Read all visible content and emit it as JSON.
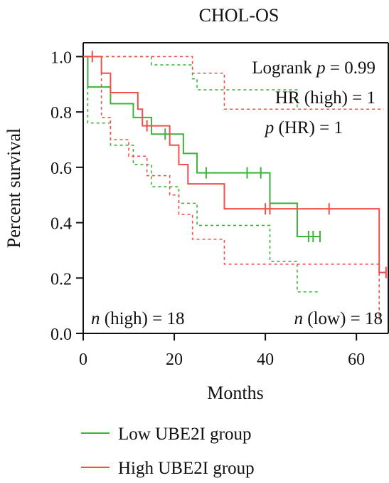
{
  "chart_data": {
    "type": "line",
    "title": "CHOL-OS",
    "xlabel": "Months",
    "ylabel": "Percent survival",
    "xlim": [
      0,
      67
    ],
    "ylim": [
      0,
      1.05
    ],
    "x_ticks": [
      "0",
      "20",
      "40",
      "60"
    ],
    "y_ticks": [
      "0.0",
      "0.2",
      "0.4",
      "0.6",
      "0.8",
      "1.0"
    ],
    "annotations": {
      "logrank_prefix": "Logrank ",
      "logrank_p": "p",
      "logrank_value": " = 0.99",
      "hr": "HR (high) = 1",
      "phr_p": "p",
      "phr_value": " (HR) = 1",
      "n_high_n": "n",
      "n_high_value": " (high) = 18",
      "n_low_n": "n",
      "n_low_value": " (low) = 18"
    },
    "legend": [
      {
        "label": "Low UBE2I group",
        "color": "#3cb43c"
      },
      {
        "label": "High UBE2I group",
        "color": "#f0504b"
      }
    ],
    "series": [
      {
        "name": "Low UBE2I group",
        "color": "#3cb43c",
        "steps": [
          [
            0,
            1.0
          ],
          [
            1,
            0.89
          ],
          [
            6,
            0.83
          ],
          [
            11,
            0.78
          ],
          [
            15,
            0.72
          ],
          [
            22,
            0.65
          ],
          [
            25,
            0.58
          ],
          [
            41,
            0.47
          ],
          [
            47,
            0.35
          ],
          [
            52,
            0.35
          ]
        ],
        "censor": [
          [
            18,
            0.72
          ],
          [
            27,
            0.58
          ],
          [
            36,
            0.58
          ],
          [
            39,
            0.58
          ],
          [
            49.5,
            0.35
          ],
          [
            50.5,
            0.35
          ],
          [
            52,
            0.35
          ]
        ],
        "ci_upper": [
          [
            0,
            1.0
          ],
          [
            1,
            1.0
          ],
          [
            15,
            0.97
          ],
          [
            24,
            0.92
          ],
          [
            25,
            0.88
          ],
          [
            41,
            0.88
          ],
          [
            47,
            0.81
          ],
          [
            52,
            0.81
          ]
        ],
        "ci_lower": [
          [
            0,
            1.0
          ],
          [
            1,
            0.76
          ],
          [
            6,
            0.68
          ],
          [
            11,
            0.61
          ],
          [
            15,
            0.53
          ],
          [
            21,
            0.47
          ],
          [
            25,
            0.39
          ],
          [
            41,
            0.26
          ],
          [
            47,
            0.15
          ],
          [
            52,
            0.15
          ]
        ]
      },
      {
        "name": "High UBE2I group",
        "color": "#f0504b",
        "steps": [
          [
            0,
            1.0
          ],
          [
            4,
            0.94
          ],
          [
            6,
            0.87
          ],
          [
            12,
            0.81
          ],
          [
            13,
            0.75
          ],
          [
            19,
            0.68
          ],
          [
            21,
            0.61
          ],
          [
            23,
            0.54
          ],
          [
            31,
            0.45
          ],
          [
            65,
            0.22
          ],
          [
            66.5,
            0.22
          ]
        ],
        "censor": [
          [
            2,
            1.0
          ],
          [
            14,
            0.75
          ],
          [
            40,
            0.45
          ],
          [
            41,
            0.45
          ],
          [
            54,
            0.45
          ],
          [
            66.5,
            0.22
          ]
        ],
        "ci_upper": [
          [
            0,
            1.0
          ],
          [
            12,
            1.0
          ],
          [
            24,
            0.94
          ],
          [
            31,
            0.81
          ],
          [
            65,
            0.81
          ],
          [
            66,
            0.81
          ]
        ],
        "ci_lower": [
          [
            0,
            1.0
          ],
          [
            4,
            0.78
          ],
          [
            6,
            0.7
          ],
          [
            10,
            0.64
          ],
          [
            14,
            0.57
          ],
          [
            19,
            0.5
          ],
          [
            21,
            0.43
          ],
          [
            24,
            0.34
          ],
          [
            31,
            0.25
          ],
          [
            65,
            0.05
          ]
        ]
      }
    ]
  }
}
